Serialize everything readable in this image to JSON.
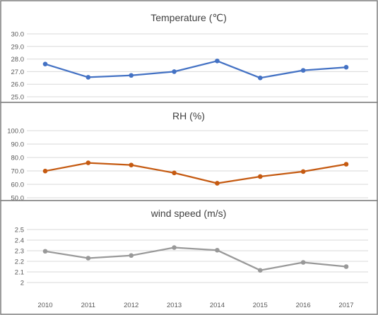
{
  "chart_data": [
    {
      "type": "line",
      "title": "Temperature (℃)",
      "categories": [
        "2010",
        "2011",
        "2012",
        "2013",
        "2014",
        "2015",
        "2016",
        "2017"
      ],
      "series": [
        {
          "values": [
            27.6,
            26.55,
            26.7,
            27.0,
            27.85,
            26.5,
            27.1,
            27.35
          ],
          "color": "#4472c4"
        }
      ],
      "ylim": [
        25.0,
        30.0
      ],
      "yticks": [
        "25.0",
        "26.0",
        "27.0",
        "28.0",
        "29.0",
        "30.0"
      ],
      "show_x_labels": false,
      "grid": "horizontal"
    },
    {
      "type": "line",
      "title": "RH (%)",
      "categories": [
        "2010",
        "2011",
        "2012",
        "2013",
        "2014",
        "2015",
        "2016",
        "2017"
      ],
      "series": [
        {
          "values": [
            69.9,
            76.0,
            74.4,
            68.5,
            60.8,
            65.8,
            69.5,
            75.0
          ],
          "color": "#c55a11"
        }
      ],
      "ylim": [
        50.0,
        100.0
      ],
      "yticks": [
        "50.0",
        "60.0",
        "70.0",
        "80.0",
        "90.0",
        "100.0"
      ],
      "show_x_labels": false,
      "grid": "horizontal"
    },
    {
      "type": "line",
      "title": "wind speed (m/s)",
      "categories": [
        "2010",
        "2011",
        "2012",
        "2013",
        "2014",
        "2015",
        "2016",
        "2017"
      ],
      "series": [
        {
          "values": [
            2.295,
            2.23,
            2.255,
            2.33,
            2.305,
            2.115,
            2.19,
            2.15
          ],
          "color": "#999999"
        }
      ],
      "ylim": [
        2.0,
        2.5
      ],
      "yticks": [
        "2",
        "2.1",
        "2.2",
        "2.3",
        "2.4",
        "2.5"
      ],
      "show_x_labels": true,
      "grid": "horizontal"
    }
  ]
}
